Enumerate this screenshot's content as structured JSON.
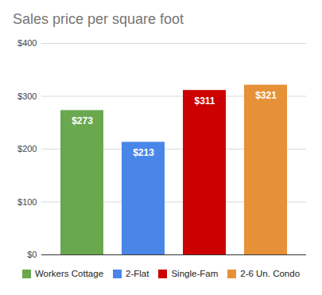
{
  "chart_data": {
    "type": "bar",
    "title": "Sales price per square foot",
    "categories": [
      "Workers Cottage",
      "2-Flat",
      "Single-Fam",
      "2-6 Un. Condo"
    ],
    "values": [
      273,
      213,
      311,
      321
    ],
    "value_labels": [
      "$273",
      "$213",
      "$311",
      "$321"
    ],
    "colors": [
      "#6aa84f",
      "#4a86e8",
      "#cc0000",
      "#e69138"
    ],
    "ylim": [
      0,
      400
    ],
    "yticks": [
      {
        "value": 0,
        "label": "$0"
      },
      {
        "value": 100,
        "label": "$100"
      },
      {
        "value": 200,
        "label": "$200"
      },
      {
        "value": 300,
        "label": "$300"
      },
      {
        "value": 400,
        "label": "$400"
      }
    ],
    "grid": true,
    "data_labels": true,
    "legend": "bottom",
    "tick_labels": "y"
  }
}
